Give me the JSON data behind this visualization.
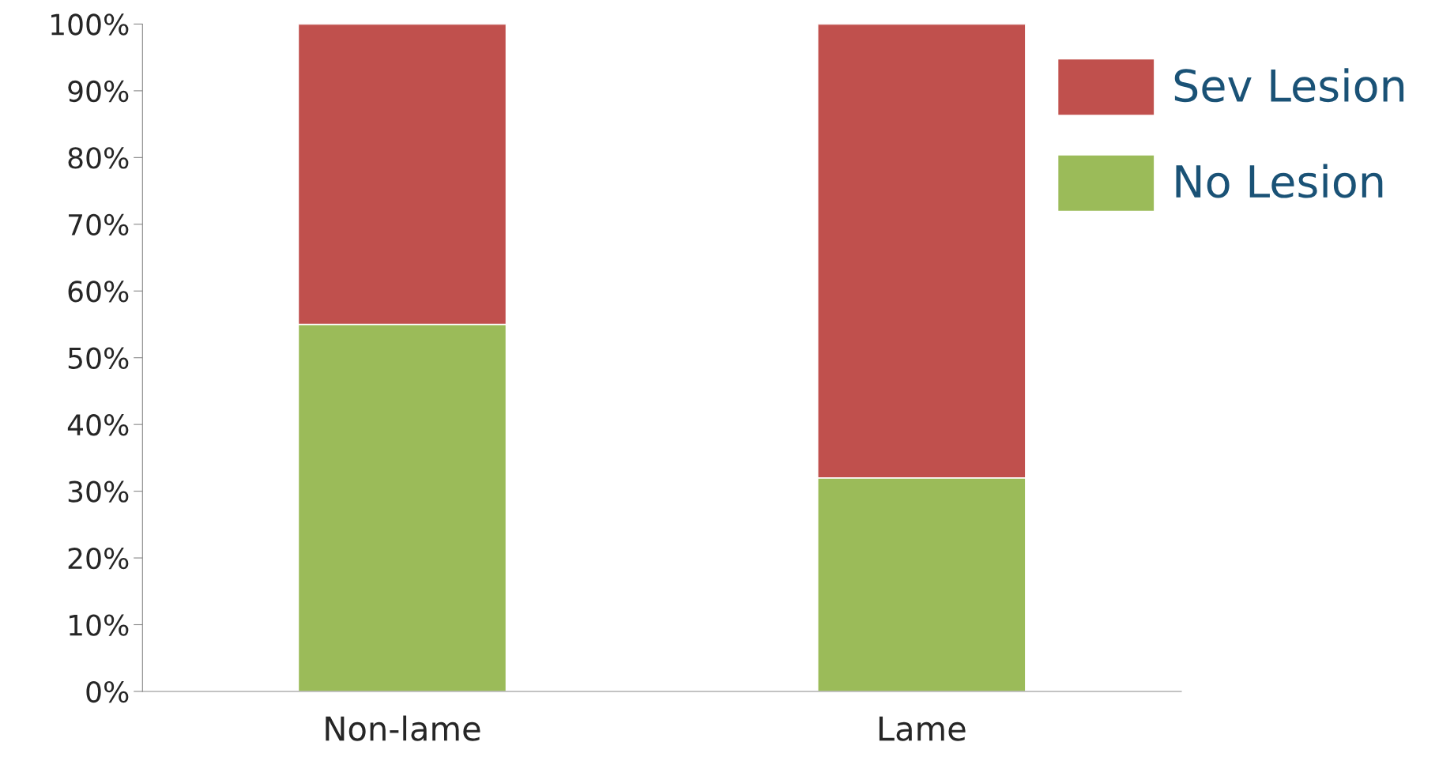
{
  "chart_data": {
    "type": "bar",
    "stacked": true,
    "categories": [
      "Non-lame",
      "Lame"
    ],
    "series": [
      {
        "name": "No Lesion",
        "color": "#9bbb59",
        "values": [
          55,
          32
        ]
      },
      {
        "name": "Sev Lesion",
        "color": "#c0504d",
        "values": [
          45,
          68
        ]
      }
    ],
    "ylim": [
      0,
      100
    ],
    "yticks": [
      {
        "value": 0,
        "label": "0%"
      },
      {
        "value": 10,
        "label": "10%"
      },
      {
        "value": 20,
        "label": "20%"
      },
      {
        "value": 30,
        "label": "30%"
      },
      {
        "value": 40,
        "label": "40%"
      },
      {
        "value": 50,
        "label": "50%"
      },
      {
        "value": 60,
        "label": "60%"
      },
      {
        "value": 70,
        "label": "70%"
      },
      {
        "value": 80,
        "label": "80%"
      },
      {
        "value": 90,
        "label": "90%"
      },
      {
        "value": 100,
        "label": "100%"
      }
    ],
    "grid": false,
    "legend": "top right"
  }
}
